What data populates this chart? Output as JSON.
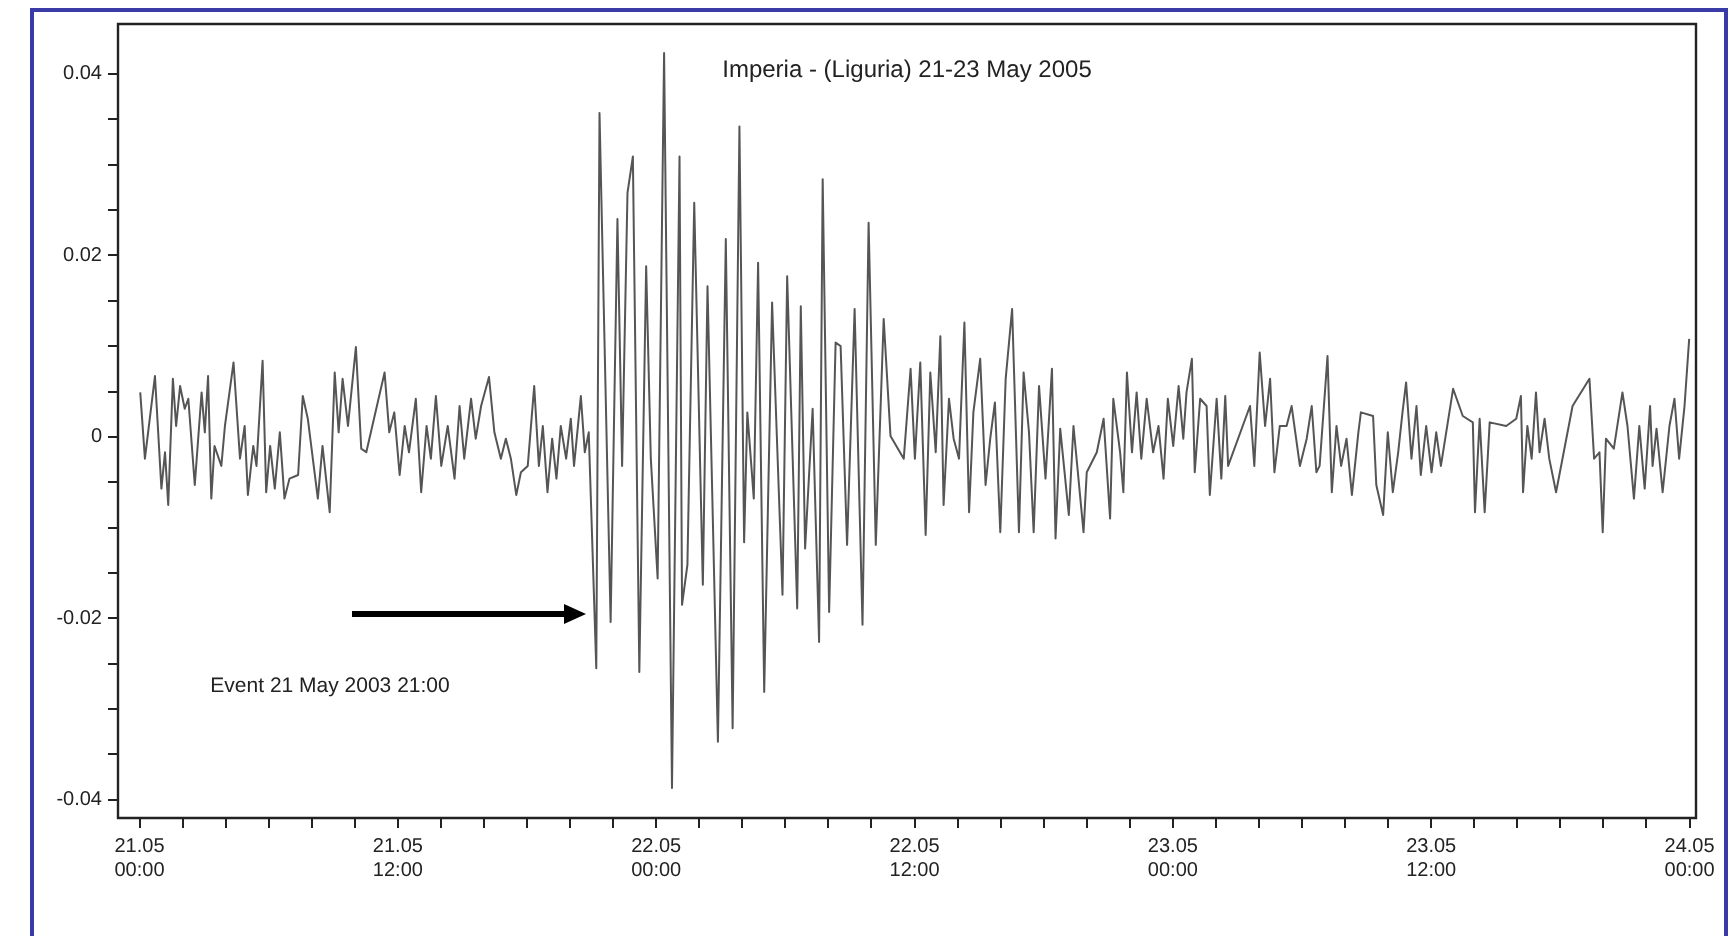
{
  "chart_data": {
    "type": "line",
    "title": "Imperia - (Liguria) 21-23 May 2005",
    "annotations": [
      "Event 21 May 2003 21:00"
    ],
    "color": "#555555",
    "marker": "none",
    "line_style": "solid",
    "grid": false,
    "legend": false,
    "xlim": [
      "2005-05-20T23:00",
      "2005-05-24T00:18"
    ],
    "ylim": [
      -0.042,
      0.0455
    ],
    "xticks": [
      {
        "value": "2005-05-21T00:00",
        "label": "21.05 00:00"
      },
      {
        "value": "2005-05-21T02:00",
        "label": null
      },
      {
        "value": "2005-05-21T04:00",
        "label": null
      },
      {
        "value": "2005-05-21T06:00",
        "label": null
      },
      {
        "value": "2005-05-21T08:00",
        "label": null
      },
      {
        "value": "2005-05-21T10:00",
        "label": null
      },
      {
        "value": "2005-05-21T12:00",
        "label": "21.05 12:00"
      },
      {
        "value": "2005-05-21T14:00",
        "label": null
      },
      {
        "value": "2005-05-21T16:00",
        "label": null
      },
      {
        "value": "2005-05-21T18:00",
        "label": null
      },
      {
        "value": "2005-05-21T20:00",
        "label": null
      },
      {
        "value": "2005-05-21T22:00",
        "label": null
      },
      {
        "value": "2005-05-22T00:00",
        "label": "22.05 00:00"
      },
      {
        "value": "2005-05-22T02:00",
        "label": null
      },
      {
        "value": "2005-05-22T04:00",
        "label": null
      },
      {
        "value": "2005-05-22T06:00",
        "label": null
      },
      {
        "value": "2005-05-22T08:00",
        "label": null
      },
      {
        "value": "2005-05-22T10:00",
        "label": null
      },
      {
        "value": "2005-05-22T12:00",
        "label": "22.05 12:00"
      },
      {
        "value": "2005-05-22T14:00",
        "label": null
      },
      {
        "value": "2005-05-22T16:00",
        "label": null
      },
      {
        "value": "2005-05-22T18:00",
        "label": null
      },
      {
        "value": "2005-05-22T20:00",
        "label": null
      },
      {
        "value": "2005-05-22T22:00",
        "label": null
      },
      {
        "value": "2005-05-23T00:00",
        "label": "23.05 00:00"
      },
      {
        "value": "2005-05-23T02:00",
        "label": null
      },
      {
        "value": "2005-05-23T04:00",
        "label": null
      },
      {
        "value": "2005-05-23T06:00",
        "label": null
      },
      {
        "value": "2005-05-23T08:00",
        "label": null
      },
      {
        "value": "2005-05-23T10:00",
        "label": null
      },
      {
        "value": "2005-05-23T12:00",
        "label": "23.05 12:00"
      },
      {
        "value": "2005-05-23T14:00",
        "label": null
      },
      {
        "value": "2005-05-23T16:00",
        "label": null
      },
      {
        "value": "2005-05-23T18:00",
        "label": null
      },
      {
        "value": "2005-05-23T20:00",
        "label": null
      },
      {
        "value": "2005-05-23T22:00",
        "label": null
      },
      {
        "value": "2005-05-24T00:00",
        "label": "24.05 00:00"
      }
    ],
    "yticks": [
      -0.04,
      {
        "value": -0.035,
        "label": null
      },
      {
        "value": -0.03,
        "label": null
      },
      {
        "value": -0.025,
        "label": null
      },
      -0.02,
      {
        "value": -0.015,
        "label": null
      },
      {
        "value": -0.01,
        "label": null
      },
      {
        "value": -0.005,
        "label": null
      },
      0,
      {
        "value": 0.005,
        "label": null
      },
      {
        "value": 0.01,
        "label": null
      },
      {
        "value": 0.015,
        "label": null
      },
      0.02,
      {
        "value": 0.025,
        "label": null
      },
      {
        "value": 0.03,
        "label": null
      },
      {
        "value": 0.035,
        "label": null
      },
      0.04
    ],
    "x": [
      "2005-05-21T00:02",
      "2005-05-21T00:15",
      "2005-05-21T00:43",
      "2005-05-21T01:01",
      "2005-05-21T01:11",
      "2005-05-21T01:20",
      "2005-05-21T01:33",
      "2005-05-21T01:42",
      "2005-05-21T01:53",
      "2005-05-21T02:06",
      "2005-05-21T02:16",
      "2005-05-21T02:34",
      "2005-05-21T02:53",
      "2005-05-21T03:02",
      "2005-05-21T03:11",
      "2005-05-21T03:20",
      "2005-05-21T03:29",
      "2005-05-21T03:48",
      "2005-05-21T03:58",
      "2005-05-21T04:22",
      "2005-05-21T04:40",
      "2005-05-21T04:53",
      "2005-05-21T05:02",
      "2005-05-21T05:17",
      "2005-05-21T05:26",
      "2005-05-21T05:43",
      "2005-05-21T05:53",
      "2005-05-21T06:04",
      "2005-05-21T06:17",
      "2005-05-21T06:31",
      "2005-05-21T06:44",
      "2005-05-21T06:58",
      "2005-05-21T07:22",
      "2005-05-21T07:35",
      "2005-05-21T07:49",
      "2005-05-21T08:17",
      "2005-05-21T08:30",
      "2005-05-21T08:50",
      "2005-05-21T09:04",
      "2005-05-21T09:15",
      "2005-05-21T09:26",
      "2005-05-21T09:41",
      "2005-05-21T10:03",
      "2005-05-21T10:18",
      "2005-05-21T10:32",
      "2005-05-21T11:23",
      "2005-05-21T11:36",
      "2005-05-21T11:50",
      "2005-05-21T12:05",
      "2005-05-21T12:19",
      "2005-05-21T12:31",
      "2005-05-21T12:50",
      "2005-05-21T13:05",
      "2005-05-21T13:20",
      "2005-05-21T13:32",
      "2005-05-21T13:46",
      "2005-05-21T14:01",
      "2005-05-21T14:19",
      "2005-05-21T14:38",
      "2005-05-21T14:52",
      "2005-05-21T15:05",
      "2005-05-21T15:24",
      "2005-05-21T15:37",
      "2005-05-21T15:52",
      "2005-05-21T16:14",
      "2005-05-21T16:29",
      "2005-05-21T16:47",
      "2005-05-21T17:01",
      "2005-05-21T17:15",
      "2005-05-21T17:30",
      "2005-05-21T17:43",
      "2005-05-21T18:02",
      "2005-05-21T18:20",
      "2005-05-21T18:33",
      "2005-05-21T18:44",
      "2005-05-21T18:57",
      "2005-05-21T19:10",
      "2005-05-21T19:22",
      "2005-05-21T19:34",
      "2005-05-21T19:49",
      "2005-05-21T20:02",
      "2005-05-21T20:11",
      "2005-05-21T20:30",
      "2005-05-21T20:41",
      "2005-05-21T20:52",
      "2005-05-21T21:13",
      "2005-05-21T21:22",
      "2005-05-21T21:53",
      "2005-05-21T22:12",
      "2005-05-21T22:25",
      "2005-05-21T22:40",
      "2005-05-21T22:55",
      "2005-05-21T23:13",
      "2005-05-21T23:32",
      "2005-05-21T23:45",
      "2005-05-22T00:04",
      "2005-05-22T00:22",
      "2005-05-22T00:44",
      "2005-05-22T01:05",
      "2005-05-22T01:12",
      "2005-05-22T01:27",
      "2005-05-22T01:46",
      "2005-05-22T02:10",
      "2005-05-22T02:23",
      "2005-05-22T02:52",
      "2005-05-22T03:14",
      "2005-05-22T03:33",
      "2005-05-22T03:52",
      "2005-05-22T04:05",
      "2005-05-22T04:14",
      "2005-05-22T04:32",
      "2005-05-22T04:44",
      "2005-05-22T05:01",
      "2005-05-22T05:23",
      "2005-05-22T05:52",
      "2005-05-22T06:05",
      "2005-05-22T06:33",
      "2005-05-22T06:43",
      "2005-05-22T06:55",
      "2005-05-22T07:16",
      "2005-05-22T07:34",
      "2005-05-22T07:44",
      "2005-05-22T08:02",
      "2005-05-22T08:20",
      "2005-05-22T08:34",
      "2005-05-22T08:52",
      "2005-05-22T09:13",
      "2005-05-22T09:35",
      "2005-05-22T09:52",
      "2005-05-22T10:12",
      "2005-05-22T10:34",
      "2005-05-22T10:53",
      "2005-05-22T11:30",
      "2005-05-22T11:49",
      "2005-05-22T12:01",
      "2005-05-22T12:16",
      "2005-05-22T12:31",
      "2005-05-22T12:44",
      "2005-05-22T12:59",
      "2005-05-22T13:12",
      "2005-05-22T13:21",
      "2005-05-22T13:36",
      "2005-05-22T13:49",
      "2005-05-22T14:04",
      "2005-05-22T14:19",
      "2005-05-22T14:32",
      "2005-05-22T14:44",
      "2005-05-22T15:03",
      "2005-05-22T15:18",
      "2005-05-22T15:31",
      "2005-05-22T15:44",
      "2005-05-22T15:59",
      "2005-05-22T16:14",
      "2005-05-22T16:32",
      "2005-05-22T16:51",
      "2005-05-22T17:04",
      "2005-05-22T17:19",
      "2005-05-22T17:32",
      "2005-05-22T17:47",
      "2005-05-22T18:05",
      "2005-05-22T18:23",
      "2005-05-22T18:33",
      "2005-05-22T18:46",
      "2005-05-22T19:10",
      "2005-05-22T19:23",
      "2005-05-22T19:51",
      "2005-05-22T20:00",
      "2005-05-22T20:28",
      "2005-05-22T20:47",
      "2005-05-22T21:05",
      "2005-05-22T21:14",
      "2005-05-22T21:33",
      "2005-05-22T21:42",
      "2005-05-22T21:52",
      "2005-05-22T22:06",
      "2005-05-22T22:19",
      "2005-05-22T22:32",
      "2005-05-22T22:47",
      "2005-05-22T23:05",
      "2005-05-22T23:20",
      "2005-05-22T23:34",
      "2005-05-22T23:46",
      "2005-05-23T00:01",
      "2005-05-23T00:16",
      "2005-05-23T00:29",
      "2005-05-23T00:38",
      "2005-05-23T00:53",
      "2005-05-23T01:01",
      "2005-05-23T01:16",
      "2005-05-23T01:34",
      "2005-05-23T01:43",
      "2005-05-23T02:02",
      "2005-05-23T02:15",
      "2005-05-23T02:26",
      "2005-05-23T02:34",
      "2005-05-23T03:35",
      "2005-05-23T03:47",
      "2005-05-23T04:02",
      "2005-05-23T04:17",
      "2005-05-23T04:31",
      "2005-05-23T04:43",
      "2005-05-23T04:58",
      "2005-05-23T05:17",
      "2005-05-23T05:31",
      "2005-05-23T05:54",
      "2005-05-23T06:13",
      "2005-05-23T06:27",
      "2005-05-23T06:40",
      "2005-05-23T06:49",
      "2005-05-23T07:11",
      "2005-05-23T07:23",
      "2005-05-23T07:36",
      "2005-05-23T07:49",
      "2005-05-23T08:04",
      "2005-05-23T08:19",
      "2005-05-23T08:37",
      "2005-05-23T08:44",
      "2005-05-23T09:18",
      "2005-05-23T09:27",
      "2005-05-23T09:46",
      "2005-05-23T09:59",
      "2005-05-23T10:13",
      "2005-05-23T10:28",
      "2005-05-23T10:40",
      "2005-05-23T10:50",
      "2005-05-23T11:05",
      "2005-05-23T11:19",
      "2005-05-23T11:31",
      "2005-05-23T11:46",
      "2005-05-23T12:01",
      "2005-05-23T12:14",
      "2005-05-23T12:27",
      "2005-05-23T13:01",
      "2005-05-23T13:28",
      "2005-05-23T13:56",
      "2005-05-23T14:02",
      "2005-05-23T14:15",
      "2005-05-23T14:29",
      "2005-05-23T14:43",
      "2005-05-23T15:29",
      "2005-05-23T15:57",
      "2005-05-23T16:10",
      "2005-05-23T16:16",
      "2005-05-23T16:28",
      "2005-05-23T16:40",
      "2005-05-23T16:52",
      "2005-05-23T17:02",
      "2005-05-23T17:16",
      "2005-05-23T17:29",
      "2005-05-23T17:48",
      "2005-05-23T18:34",
      "2005-05-23T19:21",
      "2005-05-23T19:34",
      "2005-05-23T19:49",
      "2005-05-23T19:58",
      "2005-05-23T20:07",
      "2005-05-23T20:29",
      "2005-05-23T20:53",
      "2005-05-23T21:07",
      "2005-05-23T21:25",
      "2005-05-23T21:40",
      "2005-05-23T21:55",
      "2005-05-23T22:10",
      "2005-05-23T22:17",
      "2005-05-23T22:28",
      "2005-05-23T22:45",
      "2005-05-23T23:04",
      "2005-05-23T23:18",
      "2005-05-23T23:31",
      "2005-05-23T23:46",
      "2005-05-23T23:59"
    ],
    "values": [
      0.0049,
      -0.0024,
      0.0067,
      -0.0057,
      -0.0017,
      -0.0075,
      0.0064,
      0.0012,
      0.0056,
      0.0031,
      0.0042,
      -0.0053,
      0.0049,
      0.0005,
      0.0067,
      -0.0068,
      -0.001,
      -0.0032,
      0.0012,
      0.0082,
      -0.0024,
      0.0012,
      -0.0064,
      -0.001,
      -0.0032,
      0.0084,
      -0.0061,
      -0.001,
      -0.0057,
      0.0005,
      -0.0068,
      -0.0046,
      -0.0042,
      0.0045,
      0.002,
      -0.0068,
      -0.001,
      -0.0083,
      0.0071,
      0.0005,
      0.0064,
      0.0012,
      0.0099,
      -0.0013,
      -0.0017,
      0.0071,
      0.0005,
      0.0027,
      -0.0042,
      0.0012,
      -0.0017,
      0.0042,
      -0.0061,
      0.0012,
      -0.0024,
      0.0045,
      -0.0032,
      0.0012,
      -0.0046,
      0.0034,
      -0.0024,
      0.0042,
      -0.0002,
      0.0034,
      0.0066,
      0.0005,
      -0.0024,
      -0.0002,
      -0.0024,
      -0.0064,
      -0.0039,
      -0.0032,
      0.0056,
      -0.0032,
      0.0012,
      -0.0061,
      -0.0002,
      -0.0046,
      0.0012,
      -0.0024,
      0.002,
      -0.0032,
      0.0045,
      -0.0017,
      0.0005,
      -0.0255,
      0.0357,
      -0.0204,
      0.024,
      -0.0032,
      0.0269,
      0.0309,
      -0.0259,
      0.0188,
      -0.0024,
      -0.0156,
      0.0423,
      -0.0387,
      0.0309,
      -0.0185,
      -0.0141,
      0.0258,
      -0.0163,
      0.0166,
      -0.0336,
      0.0218,
      -0.0321,
      0.0342,
      -0.0116,
      0.0027,
      -0.0068,
      0.0192,
      -0.0281,
      0.0148,
      -0.0174,
      0.0177,
      -0.0189,
      0.0144,
      -0.0123,
      0.0031,
      -0.0226,
      0.0284,
      -0.0193,
      0.0104,
      0.01,
      -0.0119,
      0.0141,
      -0.0207,
      0.0236,
      -0.0119,
      0.013,
      0.0001,
      -0.0024,
      0.0075,
      -0.0024,
      0.0082,
      -0.0108,
      0.0071,
      -0.0017,
      0.0111,
      -0.0075,
      0.0042,
      -0.0002,
      -0.0024,
      0.0126,
      -0.0083,
      0.0027,
      0.0086,
      -0.0053,
      -0.0002,
      0.0038,
      -0.0105,
      0.0064,
      0.0141,
      -0.0105,
      0.0071,
      0.0005,
      -0.0105,
      0.0056,
      -0.0046,
      0.0075,
      -0.0112,
      0.0009,
      -0.0086,
      0.0012,
      -0.0105,
      -0.0039,
      -0.0017,
      0.002,
      -0.009,
      0.0042,
      -0.0017,
      -0.0061,
      0.0071,
      -0.0017,
      0.0049,
      -0.0024,
      0.0042,
      -0.0017,
      0.0012,
      -0.0046,
      0.0042,
      -0.001,
      0.0056,
      -0.0002,
      0.0049,
      0.0086,
      -0.0039,
      0.0042,
      0.0034,
      -0.0064,
      0.0042,
      -0.0046,
      0.0045,
      -0.0032,
      0.0034,
      -0.0032,
      0.0093,
      0.0012,
      0.0064,
      -0.0039,
      0.0012,
      0.0012,
      0.0034,
      -0.0032,
      -0.0002,
      0.0034,
      -0.0039,
      -0.0032,
      0.0089,
      -0.0061,
      0.0012,
      -0.0032,
      -0.0002,
      -0.0064,
      0.0005,
      0.0027,
      0.0023,
      -0.0053,
      -0.0086,
      0.0005,
      -0.0061,
      -0.0017,
      0.0027,
      0.006,
      -0.0024,
      0.0034,
      -0.0042,
      0.0012,
      -0.0039,
      0.0005,
      -0.0032,
      0.0053,
      0.0023,
      0.0016,
      -0.0083,
      0.002,
      -0.0083,
      0.0016,
      0.0012,
      0.002,
      0.0045,
      -0.0061,
      0.0012,
      -0.0024,
      0.0049,
      -0.0017,
      0.002,
      -0.0024,
      -0.0061,
      0.0034,
      0.0064,
      -0.0024,
      -0.0017,
      -0.0105,
      -0.0002,
      -0.0013,
      0.0049,
      0.0012,
      -0.0068,
      0.0012,
      -0.0057,
      0.0034,
      -0.0032,
      0.0009,
      -0.0061,
      0.0012,
      0.0042,
      -0.0024,
      0.0034,
      0.0108
    ]
  }
}
